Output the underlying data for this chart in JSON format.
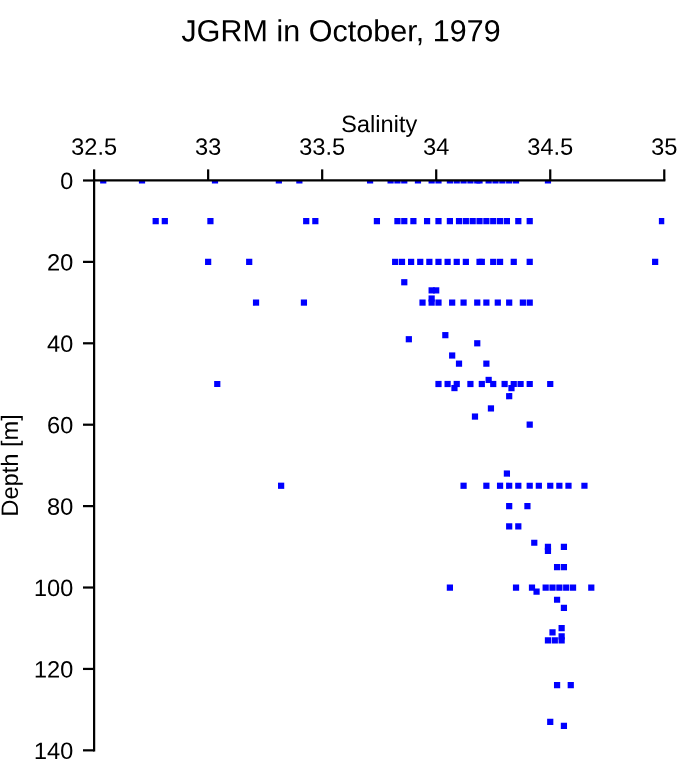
{
  "chart_data": {
    "type": "scatter",
    "title": "JGRM in October, 1979",
    "xlabel": "Salinity",
    "ylabel": "Depth [m]",
    "xlim": [
      32.5,
      35
    ],
    "xticks": [
      32.5,
      33,
      33.5,
      34,
      34.5,
      35
    ],
    "ylim": [
      140,
      0
    ],
    "yticks": [
      0,
      20,
      40,
      60,
      80,
      100,
      120,
      140
    ],
    "marker": "square",
    "grid": false,
    "legend": false,
    "series": [
      {
        "color": "#0000ff",
        "x": [
          32.54,
          32.71,
          33.03,
          33.31,
          33.4,
          33.71,
          33.8,
          33.83,
          33.86,
          33.92,
          33.98,
          34.01,
          34.06,
          34.09,
          34.12,
          34.15,
          34.18,
          34.19,
          34.23,
          34.26,
          34.29,
          34.32,
          34.35,
          34.49,
          32.77,
          32.81,
          33.01,
          33.43,
          33.47,
          33.74,
          33.83,
          33.86,
          33.9,
          33.96,
          34.01,
          34.06,
          34.1,
          34.13,
          34.16,
          34.19,
          34.22,
          34.25,
          34.28,
          34.31,
          34.36,
          34.41,
          34.99,
          33.0,
          33.18,
          33.82,
          33.85,
          33.89,
          33.93,
          33.97,
          34.01,
          34.05,
          34.09,
          34.13,
          34.19,
          34.2,
          34.25,
          34.28,
          34.34,
          34.41,
          34.96,
          33.86,
          33.98,
          34.0,
          33.98,
          33.21,
          33.42,
          33.94,
          33.98,
          34.01,
          34.07,
          34.12,
          34.18,
          34.22,
          34.27,
          34.32,
          34.38,
          34.41,
          34.04,
          33.88,
          34.18,
          34.07,
          34.1,
          34.22,
          34.23,
          33.04,
          34.01,
          34.05,
          34.09,
          34.15,
          34.2,
          34.25,
          34.3,
          34.34,
          34.37,
          34.41,
          34.5,
          34.08,
          34.33,
          34.32,
          34.24,
          34.17,
          34.41,
          34.31,
          33.32,
          34.12,
          34.22,
          34.28,
          34.32,
          34.36,
          34.41,
          34.45,
          34.5,
          34.54,
          34.58,
          34.65,
          34.32,
          34.4,
          34.32,
          34.36,
          34.43,
          34.49,
          34.56,
          34.49,
          34.53,
          34.56,
          34.06,
          34.35,
          34.42,
          34.48,
          34.51,
          34.54,
          34.57,
          34.6,
          34.68,
          34.44,
          34.53,
          34.56,
          34.55,
          34.51,
          34.55,
          34.49,
          34.52,
          34.55,
          34.53,
          34.59,
          34.5,
          34.56
        ],
        "values": [
          0,
          0,
          0,
          0,
          0,
          0,
          0,
          0,
          0,
          0,
          0,
          0,
          0,
          0,
          0,
          0,
          0,
          0,
          0,
          0,
          0,
          0,
          0,
          0,
          10,
          10,
          10,
          10,
          10,
          10,
          10,
          10,
          10,
          10,
          10,
          10,
          10,
          10,
          10,
          10,
          10,
          10,
          10,
          10,
          10,
          10,
          10,
          20,
          20,
          20,
          20,
          20,
          20,
          20,
          20,
          20,
          20,
          20,
          20,
          20,
          20,
          20,
          20,
          20,
          20,
          25,
          27,
          27,
          29,
          30,
          30,
          30,
          30,
          30,
          30,
          30,
          30,
          30,
          30,
          30,
          30,
          30,
          38,
          39,
          40,
          43,
          45,
          45,
          49,
          50,
          50,
          50,
          50,
          50,
          50,
          50,
          50,
          50,
          50,
          50,
          50,
          51,
          51,
          53,
          56,
          58,
          60,
          72,
          75,
          75,
          75,
          75,
          75,
          75,
          75,
          75,
          75,
          75,
          75,
          75,
          80,
          80,
          85,
          85,
          89,
          90,
          90,
          91,
          95,
          95,
          100,
          100,
          100,
          100,
          100,
          100,
          100,
          100,
          100,
          101,
          103,
          105,
          110,
          111,
          112,
          113,
          113,
          113,
          124,
          124,
          133,
          134
        ]
      }
    ]
  }
}
